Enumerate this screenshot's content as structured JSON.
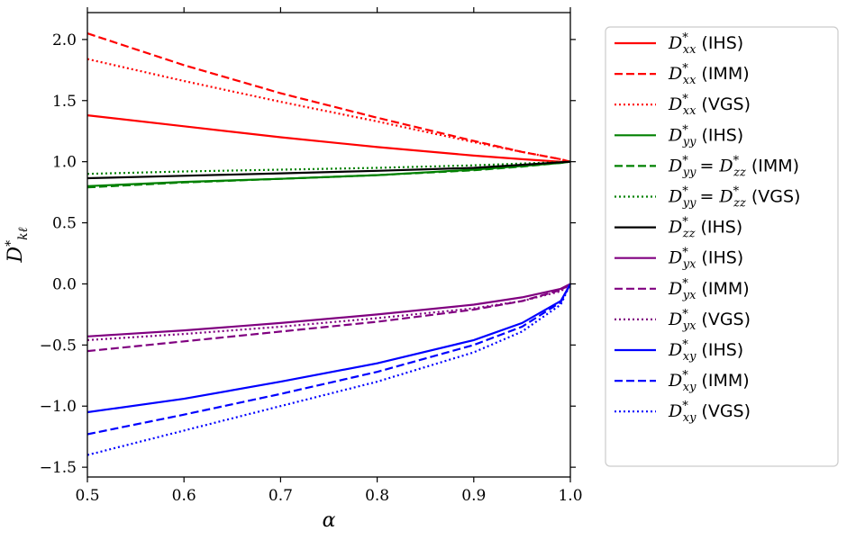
{
  "chart_data": {
    "type": "line",
    "xlabel": "α",
    "ylabel": "D*_kℓ",
    "xlim": [
      0.5,
      1.0
    ],
    "ylim": [
      -1.58,
      2.22
    ],
    "x_ticks": [
      0.5,
      0.6,
      0.7,
      0.8,
      0.9,
      1.0
    ],
    "x_tick_labels": [
      "0.5",
      "0.6",
      "0.7",
      "0.8",
      "0.9",
      "1.0"
    ],
    "y_ticks": [
      -1.5,
      -1.0,
      -0.5,
      0.0,
      0.5,
      1.0,
      1.5,
      2.0
    ],
    "y_tick_labels": [
      "−1.5",
      "−1.0",
      "−0.5",
      "0.0",
      "0.5",
      "1.0",
      "1.5",
      "2.0"
    ],
    "grid": false,
    "legend_position": "outside-right",
    "x": [
      0.5,
      0.6,
      0.7,
      0.8,
      0.9,
      0.95,
      0.99,
      1.0
    ],
    "series": [
      {
        "key": "dxx-ihs",
        "sym": "D",
        "sub": "xx",
        "eq": "",
        "method": "(IHS)",
        "color": "#ff0000",
        "dash": "solid",
        "values": [
          1.38,
          1.29,
          1.2,
          1.12,
          1.05,
          1.02,
          1.0,
          1.0
        ]
      },
      {
        "key": "dxx-imm",
        "sym": "D",
        "sub": "xx",
        "eq": "",
        "method": "(IMM)",
        "color": "#ff0000",
        "dash": "dashed",
        "values": [
          2.05,
          1.79,
          1.56,
          1.36,
          1.17,
          1.08,
          1.02,
          1.0
        ]
      },
      {
        "key": "dxx-vgs",
        "sym": "D",
        "sub": "xx",
        "eq": "",
        "method": "(VGS)",
        "color": "#ff0000",
        "dash": "dotted",
        "values": [
          1.84,
          1.66,
          1.49,
          1.33,
          1.16,
          1.08,
          1.02,
          1.0
        ]
      },
      {
        "key": "dyy-ihs",
        "sym": "D",
        "sub": "yy",
        "eq": "",
        "method": "(IHS)",
        "color": "#008000",
        "dash": "solid",
        "values": [
          0.8,
          0.835,
          0.86,
          0.89,
          0.935,
          0.965,
          0.99,
          1.0
        ]
      },
      {
        "key": "dyy-imm",
        "sym": "D",
        "sub": "yy",
        "eq": "zz",
        "method": "(IMM)",
        "color": "#008000",
        "dash": "dashed",
        "values": [
          0.79,
          0.83,
          0.86,
          0.89,
          0.93,
          0.96,
          0.99,
          1.0
        ]
      },
      {
        "key": "dyy-vgs",
        "sym": "D",
        "sub": "yy",
        "eq": "zz",
        "method": "(VGS)",
        "color": "#008000",
        "dash": "dotted",
        "values": [
          0.9,
          0.92,
          0.935,
          0.95,
          0.97,
          0.985,
          0.997,
          1.0
        ]
      },
      {
        "key": "dzz-ihs",
        "sym": "D",
        "sub": "zz",
        "eq": "",
        "method": "(IHS)",
        "color": "#000000",
        "dash": "solid",
        "values": [
          0.865,
          0.885,
          0.905,
          0.925,
          0.95,
          0.975,
          0.995,
          1.0
        ]
      },
      {
        "key": "dyx-ihs",
        "sym": "D",
        "sub": "yx",
        "eq": "",
        "method": "(IHS)",
        "color": "#800080",
        "dash": "solid",
        "values": [
          -0.43,
          -0.38,
          -0.32,
          -0.25,
          -0.17,
          -0.11,
          -0.04,
          0.0
        ]
      },
      {
        "key": "dyx-imm",
        "sym": "D",
        "sub": "yx",
        "eq": "",
        "method": "(IMM)",
        "color": "#800080",
        "dash": "dashed",
        "values": [
          -0.55,
          -0.47,
          -0.39,
          -0.31,
          -0.21,
          -0.14,
          -0.05,
          0.0
        ]
      },
      {
        "key": "dyx-vgs",
        "sym": "D",
        "sub": "yx",
        "eq": "",
        "method": "(VGS)",
        "color": "#800080",
        "dash": "dotted",
        "values": [
          -0.46,
          -0.41,
          -0.35,
          -0.28,
          -0.2,
          -0.14,
          -0.06,
          0.0
        ]
      },
      {
        "key": "dxy-ihs",
        "sym": "D",
        "sub": "xy",
        "eq": "",
        "method": "(IHS)",
        "color": "#0000ff",
        "dash": "solid",
        "values": [
          -1.05,
          -0.94,
          -0.8,
          -0.65,
          -0.46,
          -0.32,
          -0.14,
          0.0
        ]
      },
      {
        "key": "dxy-imm",
        "sym": "D",
        "sub": "xy",
        "eq": "",
        "method": "(IMM)",
        "color": "#0000ff",
        "dash": "dashed",
        "values": [
          -1.23,
          -1.07,
          -0.9,
          -0.72,
          -0.5,
          -0.35,
          -0.15,
          0.0
        ]
      },
      {
        "key": "dxy-vgs",
        "sym": "D",
        "sub": "xy",
        "eq": "",
        "method": "(VGS)",
        "color": "#0000ff",
        "dash": "dotted",
        "values": [
          -1.4,
          -1.2,
          -1.0,
          -0.8,
          -0.56,
          -0.39,
          -0.17,
          0.0
        ]
      }
    ]
  }
}
